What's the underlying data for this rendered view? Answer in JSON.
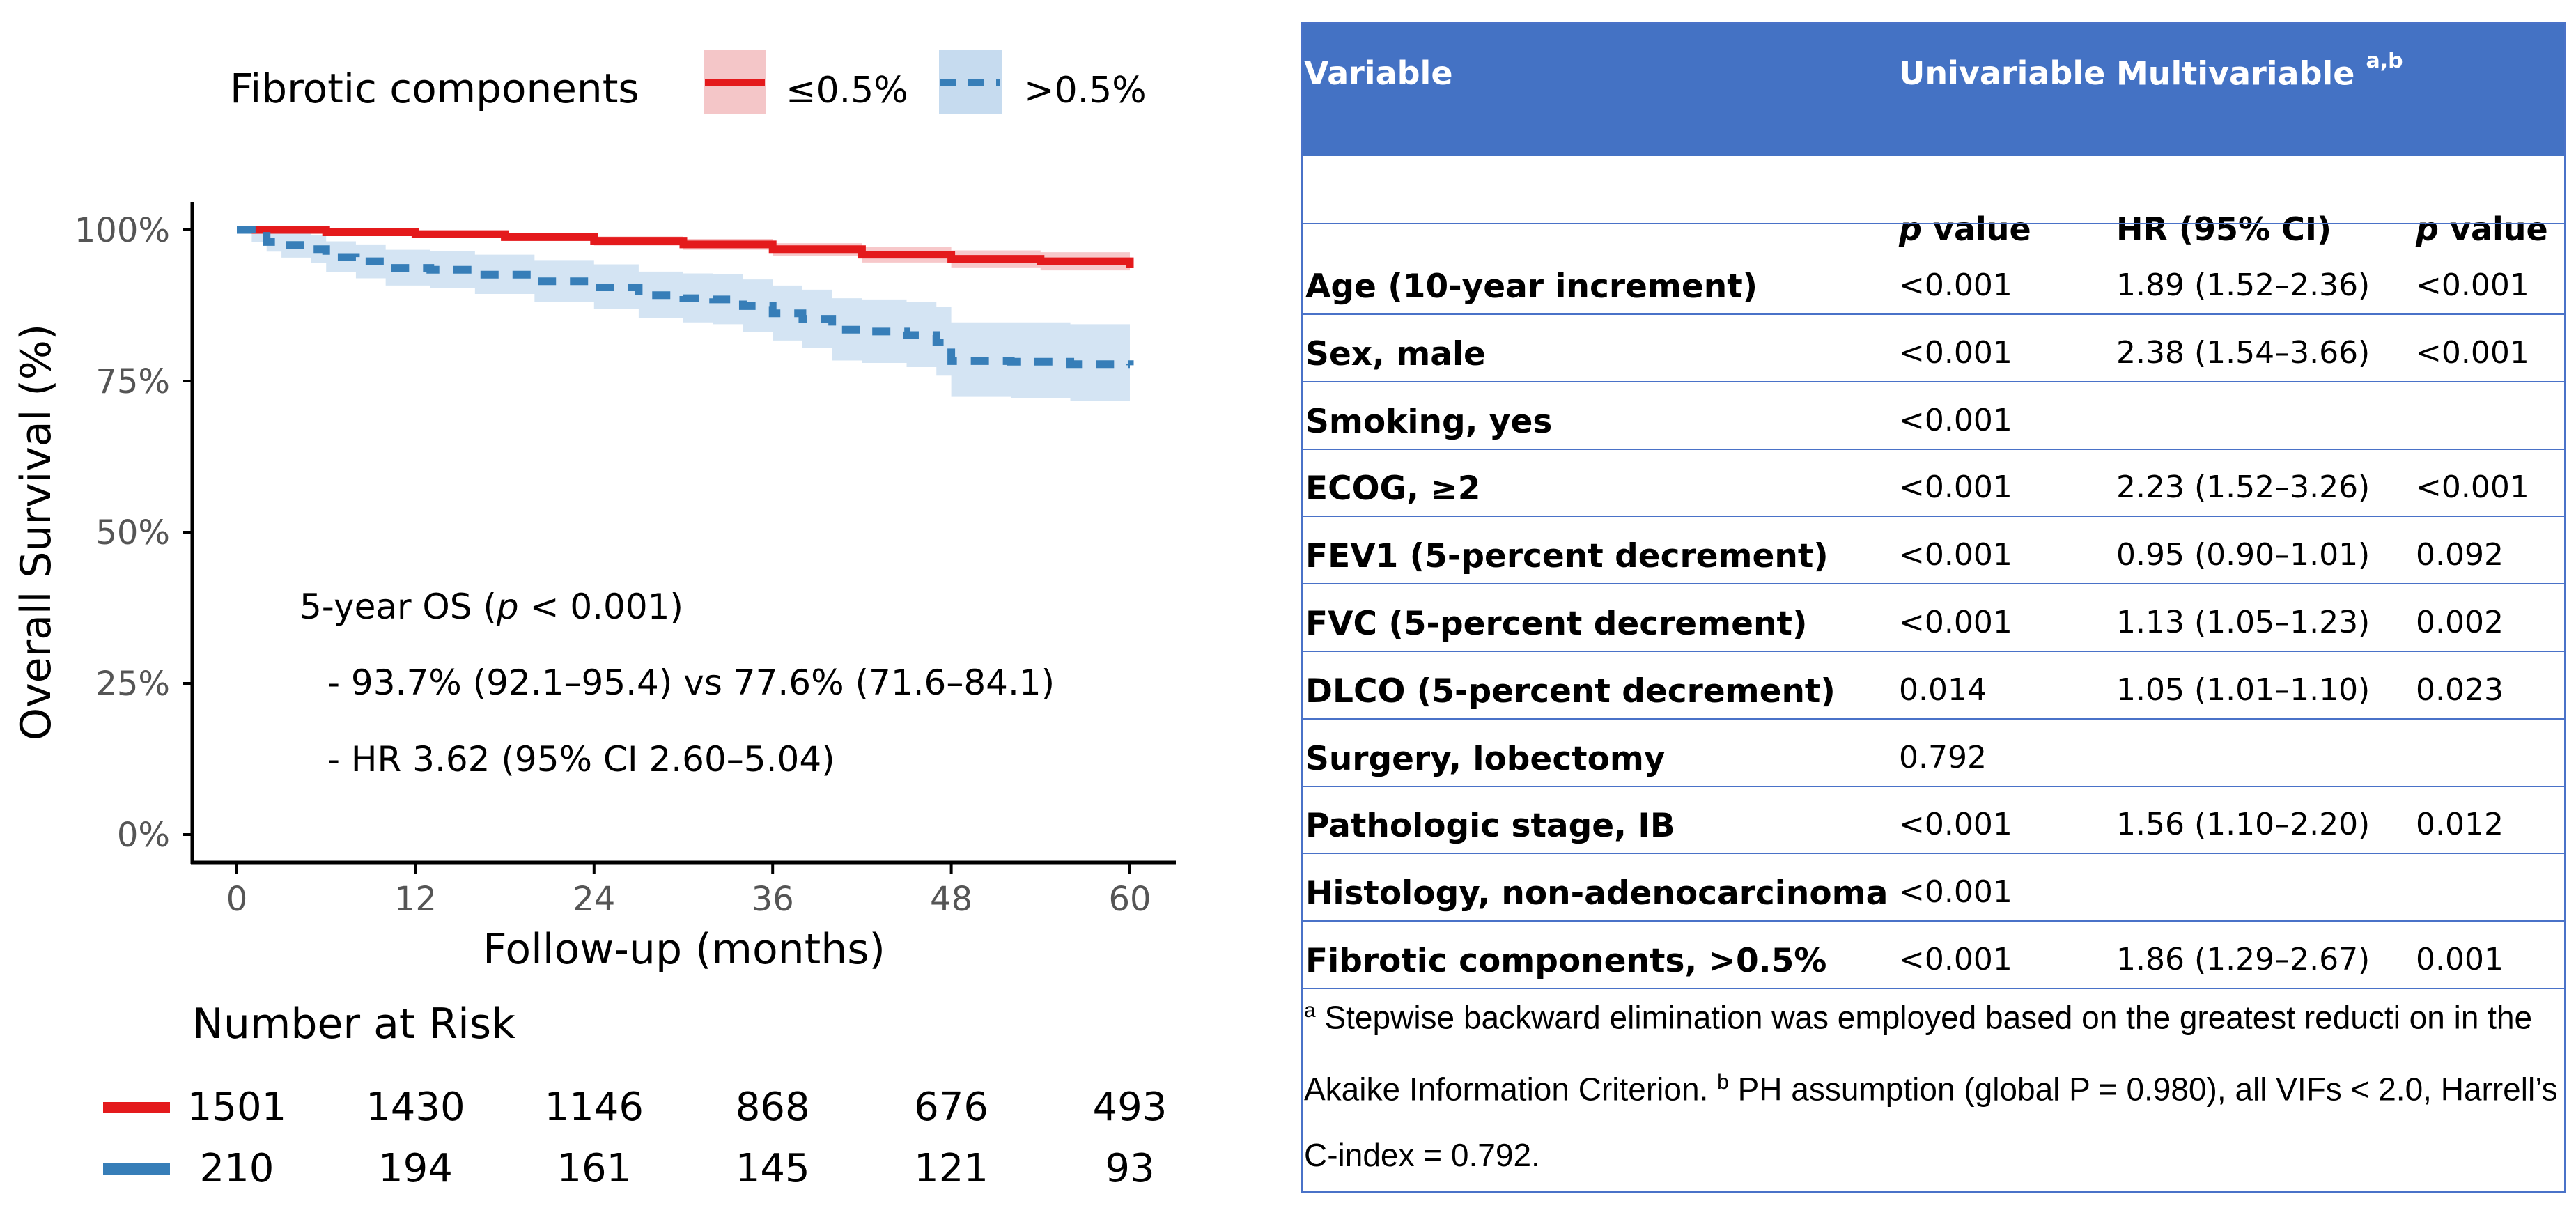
{
  "chart_data": {
    "type": "line",
    "subtype": "kaplan-meier",
    "legend": {
      "title": "Fibrotic components",
      "entries": [
        "≤0.5%",
        ">0.5%"
      ],
      "position": "top"
    },
    "xlabel": "Follow-up (months)",
    "ylabel": "Overall Survival (%)",
    "x_ticks": [
      "0",
      "12",
      "24",
      "36",
      "48",
      "60"
    ],
    "y_ticks": [
      "0%",
      "25%",
      "50%",
      "75%",
      "100%"
    ],
    "xlim": [
      0,
      60
    ],
    "ylim": [
      0,
      100
    ],
    "series": [
      {
        "name": "≤0.5%",
        "color": "#e41a1c",
        "band_color": "#f4b6b8",
        "style": "solid",
        "x": [
          0,
          6,
          12,
          18,
          24,
          30,
          36,
          42,
          48,
          54,
          60
        ],
        "y": [
          100,
          99.6,
          99.3,
          98.8,
          98.2,
          97.6,
          96.8,
          95.9,
          95.2,
          94.8,
          93.7
        ],
        "lower": [
          100,
          99.3,
          98.9,
          98.2,
          97.4,
          96.7,
          95.7,
          94.6,
          93.8,
          93.3,
          92.1
        ],
        "upper": [
          100,
          99.9,
          99.7,
          99.3,
          98.9,
          98.5,
          97.8,
          97.2,
          96.6,
          96.3,
          95.4
        ]
      },
      {
        "name": ">0.5%",
        "color": "#377eb8",
        "band_color": "#c6dbef",
        "style": "dashed",
        "x": [
          0,
          1,
          2,
          3,
          5,
          6,
          8,
          10,
          13,
          16,
          20,
          24,
          27,
          30,
          32,
          34,
          36,
          38,
          40,
          42,
          45,
          47,
          48,
          52,
          56,
          60
        ],
        "y": [
          100,
          99,
          98,
          97.5,
          96.8,
          95.5,
          94.8,
          93.7,
          93.4,
          92.6,
          91.5,
          90.5,
          89.2,
          88.7,
          88.5,
          87.4,
          86.2,
          85.3,
          83.5,
          83.2,
          82.6,
          81.4,
          78.3,
          78.2,
          77.8,
          77.6
        ],
        "lower": [
          100,
          98,
          96.4,
          95.4,
          94.5,
          93,
          92,
          90.8,
          90.4,
          89.4,
          88.1,
          86.9,
          85.4,
          84.7,
          84.4,
          83.1,
          81.7,
          80.5,
          78.4,
          78.0,
          77.3,
          75.9,
          72.4,
          72.2,
          71.7,
          71.6
        ],
        "upper": [
          100,
          100,
          99.6,
          99.5,
          99.1,
          98.1,
          97.6,
          96.7,
          96.5,
          95.9,
          95.0,
          94.3,
          93.1,
          92.8,
          92.7,
          91.8,
          90.8,
          90.1,
          88.7,
          88.5,
          88.1,
          87.3,
          84.7,
          84.7,
          84.4,
          84.1
        ]
      }
    ],
    "annotation": {
      "line1_prefix": "5-year OS (",
      "line1_p": "p",
      "line1_suffix": " < 0.001)",
      "line2": "- 93.7% (92.1–95.4) vs 77.6% (71.6–84.1)",
      "line3": "- HR 3.62 (95% CI 2.60–5.04)"
    },
    "risk_table": {
      "title": "Number at Risk",
      "rows": [
        {
          "group": "≤0.5%",
          "color": "#e41a1c",
          "values": [
            "1501",
            "1430",
            "1146",
            "868",
            "676",
            "493"
          ]
        },
        {
          "group": ">0.5%",
          "color": "#377eb8",
          "values": [
            "210",
            "194",
            "161",
            "145",
            "121",
            "93"
          ]
        }
      ]
    }
  },
  "table": {
    "header_color": "#4472c4",
    "columns": {
      "variable": "Variable",
      "univariable": "Univariable",
      "multivariable": "Multivariable",
      "multivariable_sup": "a,b"
    },
    "subheaders": {
      "uni_p": "value",
      "hr": "HR (95% CI)",
      "multi_p": "value",
      "p_letter": "p"
    },
    "rows": [
      {
        "variable": "Age (10-year increment)",
        "uni_p": "<0.001",
        "hr": "1.89 (1.52–2.36)",
        "multi_p": "<0.001"
      },
      {
        "variable": "Sex, male",
        "uni_p": "<0.001",
        "hr": "2.38 (1.54–3.66)",
        "multi_p": "<0.001"
      },
      {
        "variable": "Smoking, yes",
        "uni_p": "<0.001",
        "hr": "",
        "multi_p": ""
      },
      {
        "variable": "ECOG, ≥2",
        "uni_p": "<0.001",
        "hr": "2.23 (1.52–3.26)",
        "multi_p": "<0.001"
      },
      {
        "variable": "FEV1 (5-percent decrement)",
        "uni_p": "<0.001",
        "hr": "0.95 (0.90–1.01)",
        "multi_p": "0.092"
      },
      {
        "variable": "FVC (5-percent decrement)",
        "uni_p": "<0.001",
        "hr": "1.13 (1.05–1.23)",
        "multi_p": "0.002"
      },
      {
        "variable": "DLCO (5-percent decrement)",
        "uni_p": "0.014",
        "hr": "1.05 (1.01–1.10)",
        "multi_p": "0.023"
      },
      {
        "variable": "Surgery, lobectomy",
        "uni_p": "0.792",
        "hr": "",
        "multi_p": ""
      },
      {
        "variable": "Pathologic stage, IB",
        "uni_p": "<0.001",
        "hr": "1.56 (1.10–2.20)",
        "multi_p": "0.012"
      },
      {
        "variable": "Histology, non-adenocarcinoma",
        "uni_p": "<0.001",
        "hr": "",
        "multi_p": ""
      },
      {
        "variable": "Fibrotic components, >0.5%",
        "uni_p": "<0.001",
        "hr": "1.86 (1.29–2.67)",
        "multi_p": "0.001"
      }
    ],
    "footnote": {
      "a_mark": "a",
      "a_text": " Stepwise backward elimination was employed based on the greatest reducti on in the Akaike Information Criterion. ",
      "b_mark": "b",
      "b_text": " PH assumption (global P = 0.980), all VIFs < 2.0, Harrell’s C-index = 0.792."
    }
  }
}
